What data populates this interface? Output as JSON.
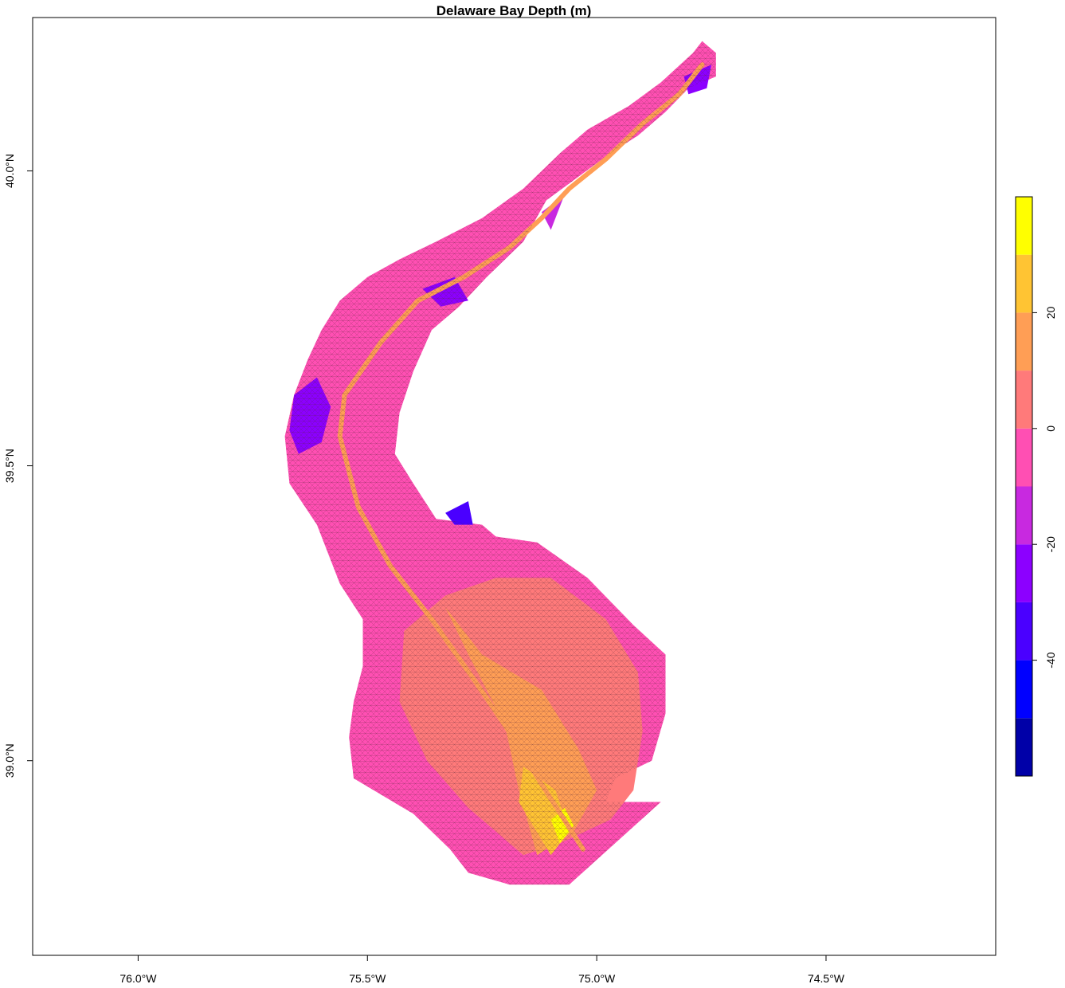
{
  "title": "Delaware Bay Depth (m)",
  "x_axis": {
    "lim": [
      -76.23,
      -74.13
    ],
    "ticks": [
      {
        "value": -76.0,
        "label": "76.0°W"
      },
      {
        "value": -75.5,
        "label": "75.5°W"
      },
      {
        "value": -75.0,
        "label": "75.0°W"
      },
      {
        "value": -74.5,
        "label": "74.5°W"
      }
    ]
  },
  "y_axis": {
    "lim": [
      38.67,
      40.26
    ],
    "ticks": [
      {
        "value": 39.0,
        "label": "39.0°N"
      },
      {
        "value": 39.5,
        "label": "39.5°N"
      },
      {
        "value": 40.0,
        "label": "40.0°N"
      }
    ]
  },
  "colorbar": {
    "lim": [
      -60,
      40
    ],
    "ticks": [
      {
        "value": -40,
        "label": "-40"
      },
      {
        "value": -20,
        "label": "-20"
      },
      {
        "value": 0,
        "label": "0"
      },
      {
        "value": 20,
        "label": "20"
      }
    ],
    "bins": [
      {
        "from": -60,
        "to": -50,
        "color": "#0000A8"
      },
      {
        "from": -50,
        "to": -40,
        "color": "#0000FF"
      },
      {
        "from": -40,
        "to": -30,
        "color": "#4A00FF"
      },
      {
        "from": -30,
        "to": -20,
        "color": "#8C00FF"
      },
      {
        "from": -20,
        "to": -10,
        "color": "#C829E0"
      },
      {
        "from": -10,
        "to": 0,
        "color": "#FF4FB3"
      },
      {
        "from": 0,
        "to": 10,
        "color": "#FF7A7A"
      },
      {
        "from": 10,
        "to": 20,
        "color": "#FF9E55"
      },
      {
        "from": 20,
        "to": 30,
        "color": "#FFC433"
      },
      {
        "from": 30,
        "to": 40,
        "color": "#FFFF00"
      }
    ]
  },
  "region": {
    "outline": [
      [
        -74.86,
        38.93
      ],
      [
        -75.06,
        38.79
      ],
      [
        -75.19,
        38.79
      ],
      [
        -75.28,
        38.81
      ],
      [
        -75.32,
        38.85
      ],
      [
        -75.4,
        38.91
      ],
      [
        -75.53,
        38.97
      ],
      [
        -75.54,
        39.04
      ],
      [
        -75.53,
        39.1
      ],
      [
        -75.51,
        39.16
      ],
      [
        -75.51,
        39.24
      ],
      [
        -75.56,
        39.3
      ],
      [
        -75.61,
        39.4
      ],
      [
        -75.67,
        39.47
      ],
      [
        -75.68,
        39.55
      ],
      [
        -75.66,
        39.62
      ],
      [
        -75.63,
        39.68
      ],
      [
        -75.6,
        39.73
      ],
      [
        -75.56,
        39.78
      ],
      [
        -75.5,
        39.82
      ],
      [
        -75.43,
        39.85
      ],
      [
        -75.35,
        39.88
      ],
      [
        -75.25,
        39.92
      ],
      [
        -75.16,
        39.97
      ],
      [
        -75.08,
        40.03
      ],
      [
        -75.02,
        40.07
      ],
      [
        -74.93,
        40.11
      ],
      [
        -74.86,
        40.15
      ],
      [
        -74.79,
        40.2
      ],
      [
        -74.77,
        40.22
      ],
      [
        -74.74,
        40.2
      ],
      [
        -74.74,
        40.16
      ],
      [
        -74.8,
        40.14
      ],
      [
        -74.85,
        40.1
      ],
      [
        -74.91,
        40.06
      ],
      [
        -74.97,
        40.03
      ],
      [
        -75.04,
        39.99
      ],
      [
        -75.11,
        39.95
      ],
      [
        -75.16,
        39.88
      ],
      [
        -75.24,
        39.82
      ],
      [
        -75.3,
        39.77
      ],
      [
        -75.36,
        39.73
      ],
      [
        -75.4,
        39.66
      ],
      [
        -75.43,
        39.59
      ],
      [
        -75.44,
        39.52
      ],
      [
        -75.4,
        39.47
      ],
      [
        -75.35,
        39.41
      ],
      [
        -75.25,
        39.4
      ],
      [
        -75.22,
        39.38
      ],
      [
        -75.13,
        39.37
      ],
      [
        -75.02,
        39.31
      ],
      [
        -74.92,
        39.23
      ],
      [
        -74.85,
        39.18
      ],
      [
        -74.85,
        39.08
      ],
      [
        -74.88,
        39.0
      ],
      [
        -74.96,
        38.97
      ],
      [
        -74.98,
        38.93
      ]
    ],
    "depth_zones": [
      {
        "value": 5,
        "ring": [
          [
            -75.16,
            38.84
          ],
          [
            -75.08,
            38.86
          ],
          [
            -74.97,
            38.9
          ],
          [
            -74.92,
            38.95
          ],
          [
            -74.9,
            39.05
          ],
          [
            -74.91,
            39.15
          ],
          [
            -74.98,
            39.24
          ],
          [
            -75.1,
            39.31
          ],
          [
            -75.22,
            39.31
          ],
          [
            -75.33,
            39.28
          ],
          [
            -75.42,
            39.22
          ],
          [
            -75.43,
            39.1
          ],
          [
            -75.37,
            39.0
          ],
          [
            -75.28,
            38.92
          ]
        ]
      },
      {
        "value": 15,
        "ring": [
          [
            -75.13,
            38.84
          ],
          [
            -75.05,
            38.88
          ],
          [
            -75.0,
            38.95
          ],
          [
            -75.04,
            39.02
          ],
          [
            -75.12,
            39.12
          ],
          [
            -75.25,
            39.18
          ],
          [
            -75.33,
            39.26
          ],
          [
            -75.28,
            39.18
          ],
          [
            -75.2,
            39.06
          ],
          [
            -75.17,
            38.95
          ]
        ]
      },
      {
        "value": 25,
        "ring": [
          [
            -75.1,
            38.84
          ],
          [
            -75.06,
            38.88
          ],
          [
            -75.09,
            38.95
          ],
          [
            -75.16,
            38.99
          ],
          [
            -75.17,
            38.93
          ]
        ]
      },
      {
        "value": 35,
        "ring": [
          [
            -75.08,
            38.86
          ],
          [
            -75.05,
            38.89
          ],
          [
            -75.07,
            38.92
          ],
          [
            -75.1,
            38.9
          ]
        ]
      },
      {
        "value": -25,
        "ring": [
          [
            -75.65,
            39.52
          ],
          [
            -75.6,
            39.54
          ],
          [
            -75.58,
            39.6
          ],
          [
            -75.61,
            39.65
          ],
          [
            -75.66,
            39.62
          ],
          [
            -75.67,
            39.56
          ]
        ]
      },
      {
        "value": -25,
        "ring": [
          [
            -75.38,
            39.8
          ],
          [
            -75.31,
            39.82
          ],
          [
            -75.28,
            39.78
          ],
          [
            -75.34,
            39.77
          ]
        ]
      },
      {
        "value": -25,
        "ring": [
          [
            -74.81,
            40.16
          ],
          [
            -74.75,
            40.18
          ],
          [
            -74.76,
            40.14
          ],
          [
            -74.8,
            40.13
          ]
        ]
      },
      {
        "value": -15,
        "ring": [
          [
            -75.12,
            39.93
          ],
          [
            -75.07,
            39.96
          ],
          [
            -75.1,
            39.9
          ]
        ]
      },
      {
        "value": -35,
        "ring": [
          [
            -75.33,
            39.42
          ],
          [
            -75.28,
            39.44
          ],
          [
            -75.27,
            39.4
          ],
          [
            -75.31,
            39.4
          ]
        ]
      }
    ],
    "channel": [
      [
        -75.03,
        38.85
      ],
      [
        -75.12,
        38.96
      ],
      [
        -75.2,
        39.06
      ],
      [
        -75.27,
        39.14
      ],
      [
        -75.36,
        39.24
      ],
      [
        -75.45,
        39.33
      ],
      [
        -75.52,
        39.43
      ],
      [
        -75.56,
        39.55
      ],
      [
        -75.55,
        39.62
      ],
      [
        -75.47,
        39.71
      ],
      [
        -75.39,
        39.78
      ],
      [
        -75.29,
        39.82
      ],
      [
        -75.19,
        39.87
      ],
      [
        -75.12,
        39.92
      ],
      [
        -75.06,
        39.97
      ],
      [
        -74.98,
        40.02
      ],
      [
        -74.9,
        40.08
      ],
      [
        -74.82,
        40.13
      ],
      [
        -74.77,
        40.18
      ]
    ],
    "channel_depth": 15
  }
}
